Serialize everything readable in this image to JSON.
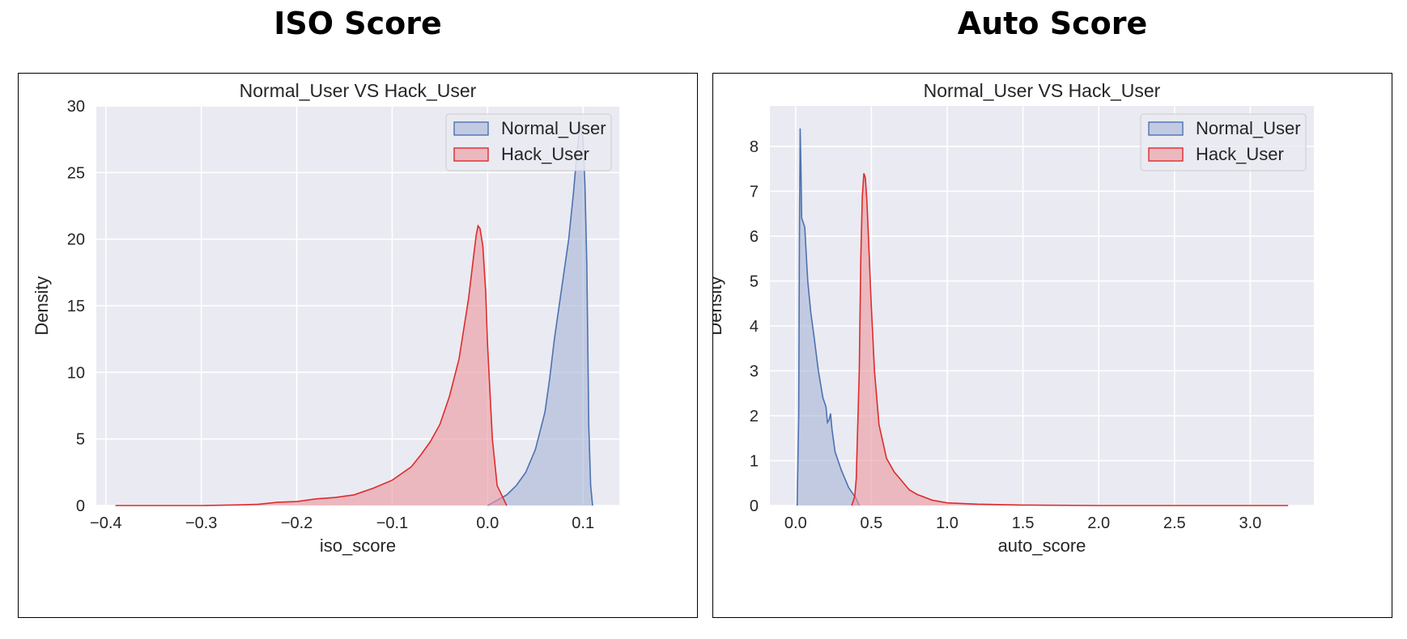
{
  "page": {
    "left_title": "ISO Score",
    "right_title": "Auto Score"
  },
  "colors": {
    "plot_bg": "#eaeaf2",
    "grid": "#ffffff",
    "normal_line": "#4c72b0",
    "normal_fill": "#aab7d8",
    "hack_line": "#dd2c2c",
    "hack_fill": "#eb9a9f"
  },
  "chart_data": [
    {
      "type": "area",
      "title": "Normal_User VS Hack_User",
      "xlabel": "iso_score",
      "ylabel": "Density",
      "xlim": [
        -0.41,
        0.138
      ],
      "ylim": [
        0,
        30
      ],
      "xticks": [
        -0.4,
        -0.3,
        -0.2,
        -0.1,
        0.0,
        0.1
      ],
      "xtick_labels": [
        "−0.4",
        "−0.3",
        "−0.2",
        "−0.1",
        "0.0",
        "0.1"
      ],
      "yticks": [
        0,
        5,
        10,
        15,
        20,
        25,
        30
      ],
      "ytick_labels": [
        "0",
        "5",
        "10",
        "15",
        "20",
        "25",
        "30"
      ],
      "grid": true,
      "legend": "top-right",
      "series": [
        {
          "name": "Normal_User",
          "x": [
            0.0,
            0.01,
            0.02,
            0.03,
            0.04,
            0.05,
            0.06,
            0.065,
            0.07,
            0.075,
            0.08,
            0.085,
            0.09,
            0.093,
            0.096,
            0.098,
            0.1,
            0.102,
            0.104,
            0.105,
            0.106,
            0.108,
            0.11
          ],
          "y": [
            0,
            0.4,
            0.8,
            1.5,
            2.5,
            4.2,
            7.0,
            9.5,
            12.5,
            15.0,
            17.5,
            20.0,
            23.5,
            26.0,
            28.0,
            28.5,
            27.5,
            24.0,
            18.0,
            12.0,
            6.0,
            1.5,
            0
          ]
        },
        {
          "name": "Hack_User",
          "x": [
            -0.39,
            -0.3,
            -0.26,
            -0.24,
            -0.22,
            -0.2,
            -0.18,
            -0.16,
            -0.14,
            -0.12,
            -0.1,
            -0.08,
            -0.07,
            -0.06,
            -0.05,
            -0.04,
            -0.03,
            -0.02,
            -0.015,
            -0.012,
            -0.01,
            -0.008,
            -0.005,
            -0.002,
            0.0,
            0.005,
            0.01,
            0.02
          ],
          "y": [
            0,
            0,
            0.05,
            0.1,
            0.25,
            0.3,
            0.5,
            0.6,
            0.8,
            1.3,
            1.9,
            2.9,
            3.8,
            4.8,
            6.1,
            8.2,
            11.0,
            15.5,
            18.5,
            20.3,
            21.0,
            20.8,
            19.5,
            16.0,
            12.0,
            5.0,
            1.5,
            0
          ]
        }
      ]
    },
    {
      "type": "area",
      "title": "Normal_User VS Hack_User",
      "xlabel": "auto_score",
      "ylabel": "Density",
      "xlim": [
        -0.17,
        3.42
      ],
      "ylim": [
        0,
        8.9
      ],
      "xticks": [
        0.0,
        0.5,
        1.0,
        1.5,
        2.0,
        2.5,
        3.0
      ],
      "xtick_labels": [
        "0.0",
        "0.5",
        "1.0",
        "1.5",
        "2.0",
        "2.5",
        "3.0"
      ],
      "yticks": [
        0,
        1,
        2,
        3,
        4,
        5,
        6,
        7,
        8
      ],
      "ytick_labels": [
        "0",
        "1",
        "2",
        "3",
        "4",
        "5",
        "6",
        "7",
        "8"
      ],
      "grid": true,
      "legend": "top-right",
      "series": [
        {
          "name": "Normal_User",
          "x": [
            0.01,
            0.02,
            0.025,
            0.03,
            0.035,
            0.04,
            0.05,
            0.06,
            0.07,
            0.08,
            0.1,
            0.12,
            0.15,
            0.18,
            0.2,
            0.21,
            0.22,
            0.23,
            0.24,
            0.26,
            0.3,
            0.35,
            0.4,
            0.42
          ],
          "y": [
            0,
            2.0,
            6.0,
            8.4,
            7.5,
            6.4,
            6.3,
            6.2,
            5.6,
            5.0,
            4.3,
            3.8,
            3.0,
            2.4,
            2.2,
            1.85,
            1.9,
            2.05,
            1.7,
            1.2,
            0.8,
            0.4,
            0.15,
            0
          ]
        },
        {
          "name": "Hack_User",
          "x": [
            0.37,
            0.39,
            0.4,
            0.42,
            0.43,
            0.44,
            0.45,
            0.46,
            0.47,
            0.48,
            0.5,
            0.52,
            0.55,
            0.6,
            0.65,
            0.7,
            0.75,
            0.8,
            0.9,
            1.0,
            1.2,
            1.5,
            2.0,
            2.5,
            3.0,
            3.25
          ],
          "y": [
            0,
            0.2,
            0.6,
            3.0,
            5.5,
            6.9,
            7.4,
            7.3,
            6.8,
            6.0,
            4.4,
            3.0,
            1.8,
            1.05,
            0.75,
            0.55,
            0.35,
            0.25,
            0.12,
            0.06,
            0.03,
            0.01,
            0,
            0,
            0,
            0
          ]
        }
      ]
    }
  ]
}
